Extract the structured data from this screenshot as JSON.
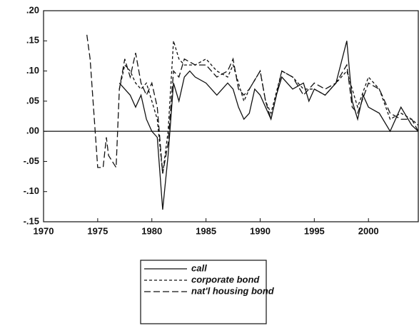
{
  "chart_data": {
    "type": "line",
    "xlim": [
      1970,
      2004.6
    ],
    "xticks": [
      1970,
      1975,
      1980,
      1985,
      1990,
      1995,
      2000
    ],
    "ylim": [
      -0.15,
      0.2
    ],
    "yticks": [
      {
        "value": 0.2,
        "label": ".20"
      },
      {
        "value": 0.15,
        "label": ".15"
      },
      {
        "value": 0.1,
        "label": ".10"
      },
      {
        "value": 0.05,
        "label": ".05"
      },
      {
        "value": 0,
        "label": ".00"
      },
      {
        "value": -0.05,
        "label": "-.05"
      },
      {
        "value": -0.1,
        "label": "-.10"
      },
      {
        "value": -0.15,
        "label": "-.15"
      }
    ],
    "color": "#111111",
    "series": [
      {
        "name": "call",
        "dash": "solid",
        "x": [
          1977,
          1977.5,
          1978,
          1978.5,
          1979,
          1979.5,
          1980,
          1980.5,
          1981,
          1981.5,
          1982,
          1982.5,
          1983,
          1983.5,
          1984,
          1985,
          1986,
          1987,
          1987.5,
          1988,
          1988.5,
          1989,
          1989.5,
          1990,
          1990.5,
          1991,
          1991.5,
          1992,
          1993,
          1994,
          1994.5,
          1995,
          1996,
          1997,
          1998,
          1998.5,
          1999,
          1999.5,
          2000,
          2001,
          2002,
          2003,
          2004,
          2004.6
        ],
        "values": [
          0.08,
          0.07,
          0.06,
          0.04,
          0.06,
          0.02,
          0.0,
          -0.01,
          -0.13,
          -0.04,
          0.08,
          0.05,
          0.09,
          0.1,
          0.09,
          0.08,
          0.06,
          0.08,
          0.07,
          0.04,
          0.02,
          0.03,
          0.07,
          0.06,
          0.04,
          0.02,
          0.06,
          0.09,
          0.07,
          0.08,
          0.05,
          0.07,
          0.06,
          0.08,
          0.15,
          0.05,
          0.02,
          0.06,
          0.04,
          0.03,
          0.0,
          0.04,
          0.01,
          0.0
        ]
      },
      {
        "name": "corporate bond",
        "dash": "short",
        "x": [
          1977,
          1977.5,
          1978,
          1978.5,
          1979,
          1979.5,
          1980,
          1980.5,
          1981,
          1981.5,
          1982,
          1982.5,
          1983,
          1984,
          1985,
          1986,
          1987,
          1987.5,
          1988,
          1988.5,
          1989,
          1990,
          1990.5,
          1991,
          1992,
          1993,
          1994,
          1995,
          1996,
          1997,
          1998,
          1998.5,
          1999,
          2000,
          2001,
          2002,
          2003,
          2004,
          2004.6
        ],
        "values": [
          0.07,
          0.11,
          0.1,
          0.08,
          0.07,
          0.08,
          0.05,
          0.02,
          -0.07,
          0.0,
          0.15,
          0.12,
          0.11,
          0.11,
          0.12,
          0.1,
          0.09,
          0.11,
          0.08,
          0.05,
          0.07,
          0.1,
          0.05,
          0.03,
          0.1,
          0.09,
          0.07,
          0.07,
          0.06,
          0.08,
          0.1,
          0.07,
          0.04,
          0.09,
          0.07,
          0.02,
          0.03,
          0.02,
          0.01
        ]
      },
      {
        "name": "nat'l housing bond",
        "dash": "long",
        "x": [
          1974,
          1974.3,
          1975,
          1975.5,
          1975.8,
          1976,
          1976.7,
          1977,
          1977.5,
          1978,
          1978.5,
          1979,
          1979.5,
          1980,
          1980.5,
          1981,
          1981.5,
          1982,
          1982.5,
          1983,
          1984,
          1985,
          1986,
          1987,
          1987.5,
          1988,
          1988.5,
          1989,
          1990,
          1990.5,
          1991,
          1992,
          1993,
          1994,
          1995,
          1996,
          1997,
          1998,
          1998.5,
          1999,
          2000,
          2001,
          2002,
          2003,
          2004,
          2004.6
        ],
        "values": [
          0.16,
          0.12,
          -0.06,
          -0.06,
          -0.01,
          -0.04,
          -0.06,
          0.07,
          0.12,
          0.09,
          0.13,
          0.08,
          0.06,
          0.08,
          0.04,
          -0.07,
          -0.02,
          0.1,
          0.09,
          0.12,
          0.11,
          0.11,
          0.09,
          0.1,
          0.12,
          0.07,
          0.06,
          0.07,
          0.1,
          0.05,
          0.02,
          0.1,
          0.09,
          0.06,
          0.08,
          0.07,
          0.08,
          0.11,
          0.04,
          0.03,
          0.08,
          0.07,
          0.03,
          0.02,
          0.02,
          0.0
        ]
      }
    ]
  }
}
